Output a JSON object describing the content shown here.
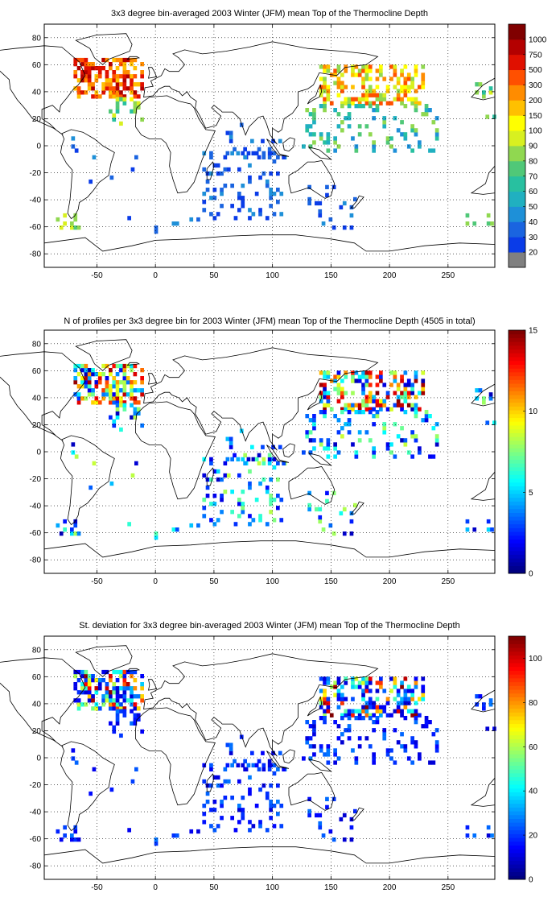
{
  "panels": [
    {
      "title": "3x3 degree bin-averaged 2003 Winter (JFM) mean Top of the Thermocline Depth",
      "colorbar": {
        "type": "discrete",
        "labels": [
          "20",
          "30",
          "40",
          "50",
          "60",
          "70",
          "80",
          "90",
          "100",
          "150",
          "200",
          "300",
          "500",
          "750",
          "1000"
        ],
        "colors": [
          "#808080",
          "#0a3ce8",
          "#1a64e0",
          "#1e90d8",
          "#20b0c0",
          "#28c0a0",
          "#50c878",
          "#90d850",
          "#d8f020",
          "#ffff00",
          "#ffc000",
          "#ff8c00",
          "#ff5000",
          "#e01000",
          "#b40000",
          "#800000"
        ]
      },
      "map": {
        "xticks": [
          "-50",
          "0",
          "50",
          "100",
          "150",
          "200",
          "250"
        ],
        "yticks": [
          "80",
          "60",
          "40",
          "20",
          "0",
          "-20",
          "-40",
          "-60",
          "-80"
        ]
      }
    },
    {
      "title": "N of profiles per 3x3 degree bin for 2003 Winter (JFM) mean Top of the Thermocline Depth  (4505 in total)",
      "colorbar": {
        "type": "jet",
        "labels": [
          "0",
          "5",
          "10",
          "15"
        ],
        "range": [
          0,
          15
        ]
      },
      "map": {
        "xticks": [
          "-50",
          "0",
          "50",
          "100",
          "150",
          "200",
          "250"
        ],
        "yticks": [
          "80",
          "60",
          "40",
          "20",
          "0",
          "-20",
          "-40",
          "-60",
          "-80"
        ]
      }
    },
    {
      "title": "St. deviation for 3x3 degree bin-averaged 2003 Winter (JFM) mean Top of the Thermocline Depth",
      "colorbar": {
        "type": "jet",
        "labels": [
          "0",
          "20",
          "40",
          "60",
          "80",
          "100"
        ],
        "range": [
          0,
          110
        ]
      },
      "map": {
        "xticks": [
          "-50",
          "0",
          "50",
          "100",
          "150",
          "200",
          "250"
        ],
        "yticks": [
          "80",
          "60",
          "40",
          "20",
          "0",
          "-20",
          "-40",
          "-60",
          "-80"
        ]
      }
    }
  ],
  "chart_data": [
    {
      "type": "heatmap",
      "title": "3x3 degree bin-averaged 2003 Winter (JFM) mean Top of the Thermocline Depth",
      "xlim": [
        -95,
        290
      ],
      "ylim": [
        -90,
        90
      ],
      "xticks": [
        -50,
        0,
        50,
        100,
        150,
        200,
        250
      ],
      "yticks": [
        -80,
        -60,
        -40,
        -20,
        0,
        20,
        40,
        60,
        80
      ],
      "grid": true,
      "colorbar_levels": [
        20,
        30,
        40,
        50,
        60,
        70,
        80,
        90,
        100,
        150,
        200,
        300,
        500,
        750,
        1000
      ]
    },
    {
      "type": "heatmap",
      "title": "N of profiles per 3x3 degree bin for 2003 Winter (JFM) mean Top of the Thermocline Depth  (4505 in total)",
      "xlim": [
        -95,
        290
      ],
      "ylim": [
        -90,
        90
      ],
      "xticks": [
        -50,
        0,
        50,
        100,
        150,
        200,
        250
      ],
      "yticks": [
        -80,
        -60,
        -40,
        -20,
        0,
        20,
        40,
        60,
        80
      ],
      "grid": true,
      "colorbar_range": [
        0,
        15
      ]
    },
    {
      "type": "heatmap",
      "title": "St. deviation for 3x3 degree bin-averaged 2003 Winter (JFM) mean Top of the Thermocline Depth",
      "xlim": [
        -95,
        290
      ],
      "ylim": [
        -90,
        90
      ],
      "xticks": [
        -50,
        0,
        50,
        100,
        150,
        200,
        250
      ],
      "yticks": [
        -80,
        -60,
        -40,
        -20,
        0,
        20,
        40,
        60,
        80
      ],
      "grid": true,
      "colorbar_range": [
        0,
        110
      ]
    }
  ]
}
